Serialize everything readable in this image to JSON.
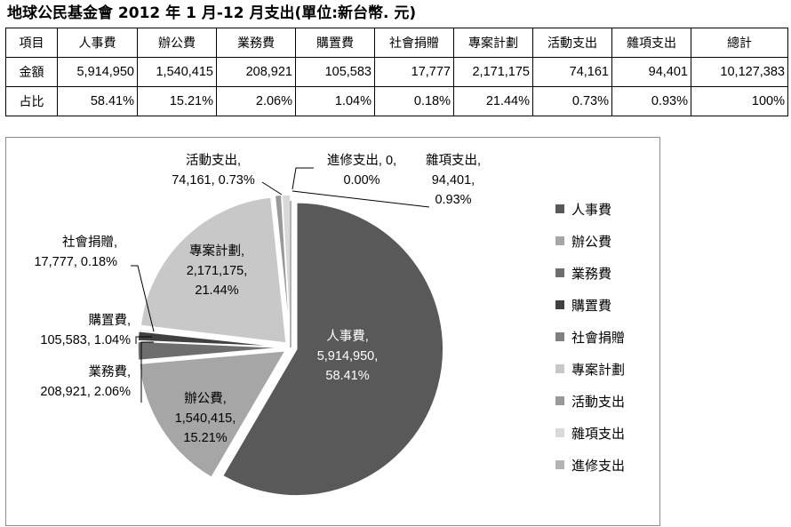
{
  "title": "地球公民基金會 2012 年 1 月-12 月支出(單位:新台幣. 元)",
  "table": {
    "headers": [
      "項目",
      "人事費",
      "辦公費",
      "業務費",
      "購置費",
      "社會捐贈",
      "專案計劃",
      "活動支出",
      "雜項支出",
      "總計"
    ],
    "rows": [
      [
        "金額",
        "5,914,950",
        "1,540,415",
        "208,921",
        "105,583",
        "17,777",
        "2,171,175",
        "74,161",
        "94,401",
        "10,127,383"
      ],
      [
        "占比",
        "58.41%",
        "15.21%",
        "2.06%",
        "1.04%",
        "0.18%",
        "21.44%",
        "0.73%",
        "0.93%",
        "100%"
      ]
    ]
  },
  "chart_data": {
    "type": "pie",
    "slices": [
      {
        "name": "人事費",
        "value": 5914950,
        "percent": "58.41%",
        "color": "#595959",
        "label_lines": [
          "人事費,",
          "5,914,950,",
          "58.41%"
        ]
      },
      {
        "name": "辦公費",
        "value": 1540415,
        "percent": "15.21%",
        "color": "#a6a6a6",
        "label_lines": [
          "辦公費,",
          "1,540,415,",
          "15.21%"
        ]
      },
      {
        "name": "業務費",
        "value": 208921,
        "percent": "2.06%",
        "color": "#6e6e6e",
        "label_lines": [
          "業務費,",
          "208,921, 2.06%"
        ]
      },
      {
        "name": "購置費",
        "value": 105583,
        "percent": "1.04%",
        "color": "#404040",
        "label_lines": [
          "購置費,",
          "105,583, 1.04%"
        ]
      },
      {
        "name": "社會捐贈",
        "value": 17777,
        "percent": "0.18%",
        "color": "#808080",
        "label_lines": [
          "社會捐贈,",
          "17,777, 0.18%"
        ]
      },
      {
        "name": "專案計劃",
        "value": 2171175,
        "percent": "21.44%",
        "color": "#c8c8c8",
        "label_lines": [
          "專案計劃,",
          "2,171,175,",
          "21.44%"
        ]
      },
      {
        "name": "活動支出",
        "value": 74161,
        "percent": "0.73%",
        "color": "#999999",
        "label_lines": [
          "活動支出,",
          "74,161, 0.73%"
        ]
      },
      {
        "name": "雜項支出",
        "value": 94401,
        "percent": "0.93%",
        "color": "#d9d9d9",
        "label_lines": [
          "雜項支出,",
          "94,401,",
          "0.93%"
        ]
      },
      {
        "name": "進修支出",
        "value": 0,
        "percent": "0.00%",
        "color": "#b3b3b3",
        "label_lines": [
          "進修支出, 0,",
          "0.00%"
        ]
      }
    ],
    "exploded": true,
    "legend_position": "right"
  }
}
